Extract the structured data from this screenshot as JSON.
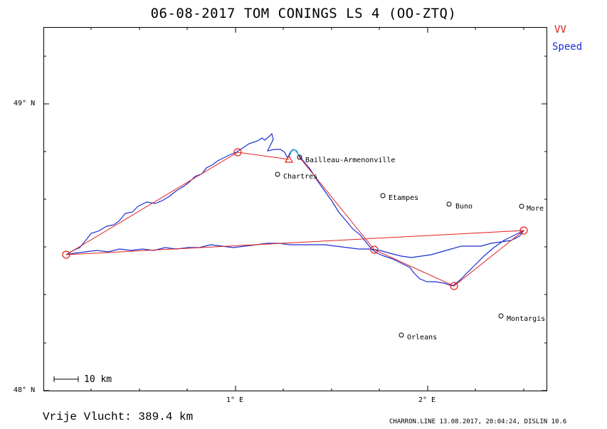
{
  "title": "06-08-2017   TOM CONINGS   LS 4 (OO-ZTQ)",
  "legend": {
    "vv_label": "VV",
    "vv_color": "#e0201c",
    "speed_label": "Speed",
    "speed_color": "#1a2fd1"
  },
  "axes": {
    "lat_49": "49° N",
    "lat_48": "48° N",
    "lon_1": "1° E",
    "lon_2": "2° E"
  },
  "towns": [
    {
      "name": "Bailleau-Armenonville"
    },
    {
      "name": "Chartres"
    },
    {
      "name": "Etampes"
    },
    {
      "name": "Buno"
    },
    {
      "name": "More"
    },
    {
      "name": "Montargis"
    },
    {
      "name": "Orleans"
    }
  ],
  "scale_bar": {
    "label": "10 km"
  },
  "summary": "Vrije Vlucht:  389.4 km",
  "footer": "CHARRON.LINE 13.08.2017, 20:04:24, DISLIN 10.6"
}
